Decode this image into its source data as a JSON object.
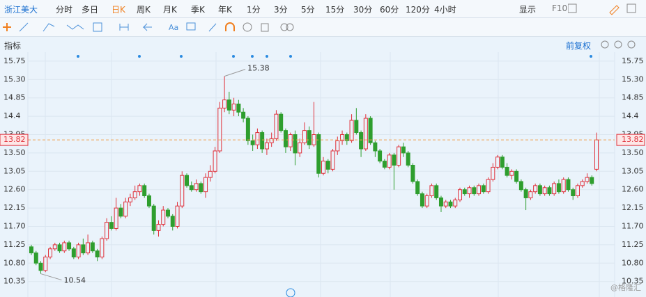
{
  "toolbar": {
    "stock": "浙江美大",
    "periods": [
      "分时",
      "多日",
      "日K",
      "周K",
      "月K",
      "季K",
      "年K",
      "1分",
      "3分",
      "5分",
      "15分",
      "30分",
      "60分",
      "120分",
      "4小时"
    ],
    "display": "显示",
    "f10": "F10",
    "text_tool": "Aa"
  },
  "indicator_label": "指标",
  "adjust_label": "前复权",
  "watermark": "@格隆汇",
  "chart_data": {
    "type": "candlestick",
    "up_color": "#e0303a",
    "down_color": "#2e9e2e",
    "last_price_color": "#f0a050",
    "ylim": [
      9.97,
      15.97
    ],
    "yticks": [
      15.75,
      {
        "value": 15.3,
        "label": "15.30"
      },
      14.85,
      14.4,
      13.95,
      {
        "value": 13.5,
        "label": "13.50"
      },
      13.05,
      {
        "value": 12.6,
        "label": "12.60"
      },
      12.15,
      {
        "value": 11.7,
        "label": "11.70"
      },
      11.25,
      {
        "value": 10.8,
        "label": "10.80"
      },
      10.35
    ],
    "last_price": 13.82,
    "high_marker": 15.38,
    "low_marker": 10.54,
    "series": [
      {
        "values": [
          [
            11.2,
            11.25,
            11.0,
            11.05
          ],
          [
            11.05,
            11.1,
            10.75,
            10.8
          ],
          [
            10.8,
            10.85,
            10.54,
            10.62
          ],
          [
            10.62,
            11.0,
            10.58,
            10.95
          ],
          [
            10.95,
            11.2,
            10.9,
            11.15
          ],
          [
            11.15,
            11.3,
            11.1,
            11.25
          ],
          [
            11.25,
            11.3,
            11.05,
            11.1
          ],
          [
            11.1,
            11.35,
            11.05,
            11.3
          ],
          [
            11.3,
            11.35,
            11.1,
            11.15
          ],
          [
            11.15,
            11.2,
            10.9,
            10.95
          ],
          [
            10.95,
            11.3,
            10.9,
            11.25
          ],
          [
            11.25,
            11.4,
            11.0,
            11.05
          ],
          [
            11.05,
            11.5,
            11.0,
            11.3
          ],
          [
            11.3,
            11.35,
            11.05,
            11.1
          ],
          [
            11.1,
            11.15,
            10.85,
            10.95
          ],
          [
            10.95,
            11.45,
            10.9,
            11.4
          ],
          [
            11.4,
            11.9,
            11.35,
            11.8
          ],
          [
            11.8,
            11.95,
            11.6,
            11.65
          ],
          [
            11.65,
            12.4,
            11.6,
            12.15
          ],
          [
            12.15,
            12.25,
            11.9,
            11.95
          ],
          [
            11.95,
            12.4,
            11.9,
            12.3
          ],
          [
            12.3,
            12.5,
            12.2,
            12.4
          ],
          [
            12.4,
            12.7,
            12.35,
            12.55
          ],
          [
            12.55,
            12.75,
            12.45,
            12.7
          ],
          [
            12.7,
            12.75,
            12.4,
            12.45
          ],
          [
            12.45,
            12.5,
            12.15,
            12.2
          ],
          [
            12.2,
            12.25,
            11.5,
            11.6
          ],
          [
            11.6,
            11.85,
            11.45,
            11.75
          ],
          [
            11.75,
            12.2,
            11.7,
            12.1
          ],
          [
            12.1,
            12.15,
            11.9,
            11.95
          ],
          [
            11.95,
            12.0,
            11.6,
            11.7
          ],
          [
            11.7,
            12.3,
            11.65,
            12.2
          ],
          [
            12.2,
            13.05,
            12.15,
            12.95
          ],
          [
            12.95,
            13.0,
            12.65,
            12.7
          ],
          [
            12.7,
            12.8,
            12.55,
            12.6
          ],
          [
            12.6,
            12.85,
            12.55,
            12.75
          ],
          [
            12.75,
            12.8,
            12.5,
            12.55
          ],
          [
            12.55,
            13.0,
            12.4,
            12.9
          ],
          [
            12.9,
            13.2,
            12.8,
            13.05
          ],
          [
            13.05,
            13.65,
            13.0,
            13.55
          ],
          [
            13.55,
            14.75,
            13.5,
            14.6
          ],
          [
            14.6,
            15.38,
            14.5,
            14.8
          ],
          [
            14.8,
            15.0,
            14.45,
            14.55
          ],
          [
            14.55,
            14.85,
            14.4,
            14.7
          ],
          [
            14.7,
            14.8,
            14.4,
            14.5
          ],
          [
            14.5,
            14.6,
            14.25,
            14.35
          ],
          [
            14.35,
            14.4,
            13.7,
            13.8
          ],
          [
            13.8,
            13.95,
            13.55,
            13.7
          ],
          [
            13.7,
            14.1,
            13.6,
            14.0
          ],
          [
            14.0,
            14.05,
            13.5,
            13.6
          ],
          [
            13.6,
            13.85,
            13.45,
            13.75
          ],
          [
            13.75,
            14.0,
            13.65,
            13.85
          ],
          [
            13.85,
            14.55,
            13.8,
            14.45
          ],
          [
            14.45,
            14.5,
            14.0,
            14.05
          ],
          [
            14.05,
            14.1,
            13.5,
            13.65
          ],
          [
            13.65,
            14.0,
            13.55,
            13.95
          ],
          [
            13.95,
            14.05,
            13.2,
            13.5
          ],
          [
            13.5,
            13.85,
            13.4,
            13.75
          ],
          [
            13.75,
            14.25,
            13.7,
            14.05
          ],
          [
            14.05,
            14.15,
            13.6,
            13.7
          ],
          [
            13.7,
            14.75,
            13.65,
            13.95
          ],
          [
            13.95,
            14.0,
            12.9,
            13.0
          ],
          [
            13.0,
            13.4,
            12.95,
            13.3
          ],
          [
            13.3,
            13.35,
            13.0,
            13.1
          ],
          [
            13.1,
            13.6,
            13.05,
            13.55
          ],
          [
            13.55,
            13.9,
            13.45,
            13.8
          ],
          [
            13.8,
            14.05,
            13.7,
            13.95
          ],
          [
            13.95,
            14.0,
            13.7,
            13.8
          ],
          [
            13.8,
            14.45,
            13.75,
            14.3
          ],
          [
            14.3,
            14.6,
            13.95,
            14.0
          ],
          [
            14.0,
            14.05,
            13.4,
            13.6
          ],
          [
            13.6,
            14.45,
            13.55,
            14.35
          ],
          [
            14.35,
            14.4,
            13.7,
            13.75
          ],
          [
            13.75,
            13.8,
            13.4,
            13.55
          ],
          [
            13.55,
            13.6,
            13.25,
            13.3
          ],
          [
            13.3,
            13.35,
            13.1,
            13.15
          ],
          [
            13.15,
            13.5,
            13.1,
            13.45
          ],
          [
            13.45,
            13.5,
            12.6,
            13.2
          ],
          [
            13.2,
            13.7,
            13.15,
            13.65
          ],
          [
            13.65,
            13.75,
            13.4,
            13.5
          ],
          [
            13.5,
            13.55,
            13.15,
            13.2
          ],
          [
            13.2,
            13.25,
            12.75,
            12.8
          ],
          [
            12.8,
            12.85,
            12.45,
            12.5
          ],
          [
            12.5,
            12.55,
            12.15,
            12.2
          ],
          [
            12.2,
            12.5,
            12.15,
            12.45
          ],
          [
            12.45,
            12.75,
            12.4,
            12.7
          ],
          [
            12.7,
            12.75,
            12.35,
            12.4
          ],
          [
            12.4,
            12.45,
            12.05,
            12.2
          ],
          [
            12.2,
            12.35,
            12.15,
            12.3
          ],
          [
            12.3,
            12.35,
            12.15,
            12.2
          ],
          [
            12.2,
            12.4,
            12.15,
            12.35
          ],
          [
            12.35,
            12.65,
            12.3,
            12.6
          ],
          [
            12.6,
            12.65,
            12.45,
            12.5
          ],
          [
            12.5,
            12.7,
            12.4,
            12.65
          ],
          [
            12.65,
            12.7,
            12.45,
            12.5
          ],
          [
            12.5,
            12.75,
            12.45,
            12.7
          ],
          [
            12.7,
            12.75,
            12.5,
            12.55
          ],
          [
            12.55,
            12.9,
            12.5,
            12.85
          ],
          [
            12.85,
            13.25,
            12.8,
            13.15
          ],
          [
            13.15,
            13.45,
            13.1,
            13.4
          ],
          [
            13.4,
            13.45,
            13.1,
            13.15
          ],
          [
            13.15,
            13.25,
            12.9,
            12.95
          ],
          [
            12.95,
            13.1,
            12.85,
            13.05
          ],
          [
            13.05,
            13.1,
            12.75,
            12.8
          ],
          [
            12.8,
            12.85,
            12.55,
            12.6
          ],
          [
            12.6,
            12.65,
            12.1,
            12.4
          ],
          [
            12.4,
            12.6,
            12.35,
            12.55
          ],
          [
            12.55,
            12.75,
            12.5,
            12.7
          ],
          [
            12.7,
            12.75,
            12.45,
            12.5
          ],
          [
            12.5,
            12.7,
            12.45,
            12.65
          ],
          [
            12.65,
            12.7,
            12.45,
            12.5
          ],
          [
            12.5,
            12.8,
            12.45,
            12.75
          ],
          [
            12.75,
            12.85,
            12.5,
            12.55
          ],
          [
            12.55,
            12.9,
            12.5,
            12.85
          ],
          [
            12.85,
            12.9,
            12.55,
            12.6
          ],
          [
            12.6,
            12.65,
            12.35,
            12.45
          ],
          [
            12.45,
            12.75,
            12.4,
            12.7
          ],
          [
            12.7,
            12.85,
            12.65,
            12.8
          ],
          [
            12.8,
            13.0,
            12.75,
            12.9
          ],
          [
            12.9,
            12.95,
            12.7,
            12.75
          ],
          [
            13.1,
            14.0,
            13.05,
            13.82
          ]
        ]
      }
    ]
  }
}
